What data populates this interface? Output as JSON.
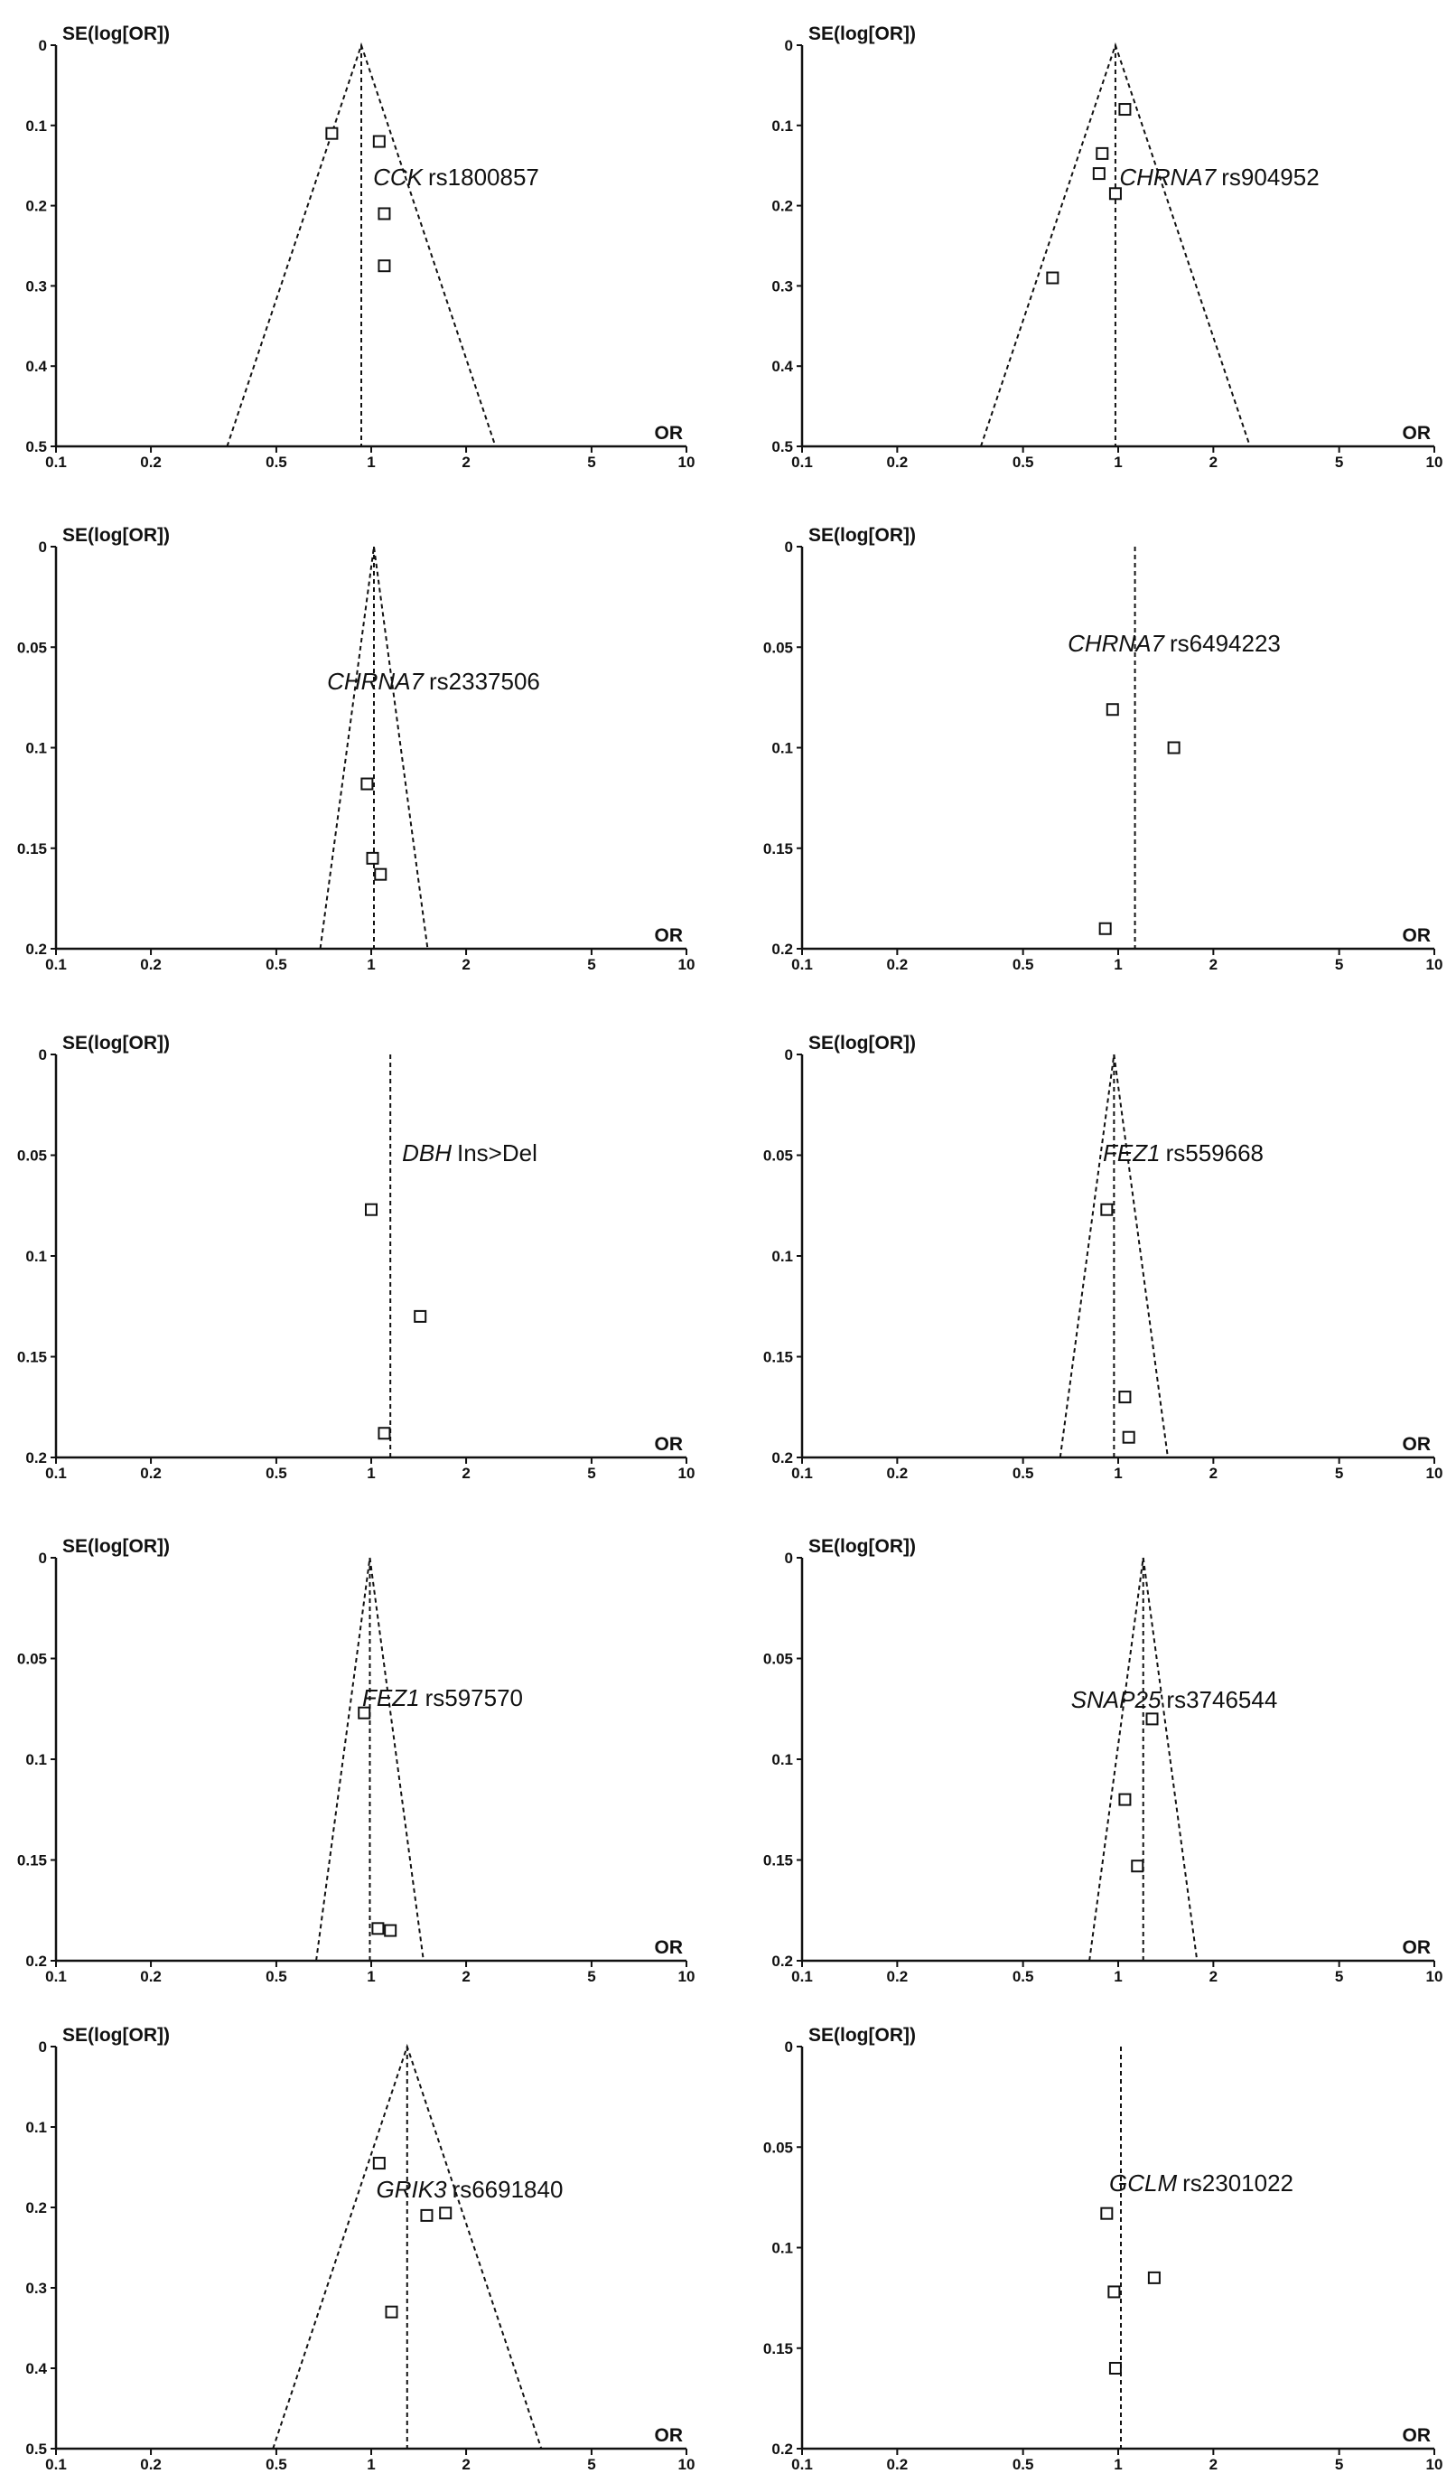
{
  "figure": {
    "panels_count": 10
  },
  "chart_data": [
    {
      "type": "scatter",
      "plot": "funnel",
      "gene": "CCK",
      "snp": "rs1800857",
      "ylabel": "SE(log[OR])",
      "xlabel": "OR",
      "xscale": "log",
      "xlim": [
        0.1,
        10
      ],
      "ylim": [
        0,
        0.5
      ],
      "y_inverted": true,
      "xticks": [
        "0.1",
        "0.2",
        "0.5",
        "1",
        "2",
        "5",
        "10"
      ],
      "yticks": [
        "0",
        "0.1",
        "0.2",
        "0.3",
        "0.4",
        "0.5"
      ],
      "pooled_or": 0.93,
      "funnel": true,
      "points": [
        {
          "or": 0.75,
          "se": 0.11
        },
        {
          "or": 1.06,
          "se": 0.12
        },
        {
          "or": 1.1,
          "se": 0.21
        },
        {
          "or": 1.1,
          "se": 0.275
        }
      ]
    },
    {
      "type": "scatter",
      "plot": "funnel",
      "gene": "CHRNA7",
      "snp": "rs904952",
      "ylabel": "SE(log[OR])",
      "xlabel": "OR",
      "xscale": "log",
      "xlim": [
        0.1,
        10
      ],
      "ylim": [
        0,
        0.5
      ],
      "y_inverted": true,
      "xticks": [
        "0.1",
        "0.2",
        "0.5",
        "1",
        "2",
        "5",
        "10"
      ],
      "yticks": [
        "0",
        "0.1",
        "0.2",
        "0.3",
        "0.4",
        "0.5"
      ],
      "pooled_or": 0.98,
      "funnel": true,
      "points": [
        {
          "or": 1.05,
          "se": 0.08
        },
        {
          "or": 0.89,
          "se": 0.135
        },
        {
          "or": 0.87,
          "se": 0.16
        },
        {
          "or": 0.98,
          "se": 0.185
        },
        {
          "or": 0.62,
          "se": 0.29
        }
      ]
    },
    {
      "type": "scatter",
      "plot": "funnel",
      "gene": "CHRNA7",
      "snp": "rs2337506",
      "ylabel": "SE(log[OR])",
      "xlabel": "OR",
      "xscale": "log",
      "xlim": [
        0.1,
        10
      ],
      "ylim": [
        0,
        0.2
      ],
      "y_inverted": true,
      "xticks": [
        "0.1",
        "0.2",
        "0.5",
        "1",
        "2",
        "5",
        "10"
      ],
      "yticks": [
        "0",
        "0.05",
        "0.1",
        "0.15",
        "0.2"
      ],
      "pooled_or": 1.02,
      "funnel": true,
      "points": [
        {
          "or": 0.97,
          "se": 0.118
        },
        {
          "or": 1.01,
          "se": 0.155
        },
        {
          "or": 1.07,
          "se": 0.163
        }
      ]
    },
    {
      "type": "scatter",
      "plot": "funnel",
      "gene": "CHRNA7",
      "snp": "rs6494223",
      "ylabel": "SE(log[OR])",
      "xlabel": "OR",
      "xscale": "log",
      "xlim": [
        0.1,
        10
      ],
      "ylim": [
        0,
        0.2
      ],
      "y_inverted": true,
      "xticks": [
        "0.1",
        "0.2",
        "0.5",
        "1",
        "2",
        "5",
        "10"
      ],
      "yticks": [
        "0",
        "0.05",
        "0.1",
        "0.15",
        "0.2"
      ],
      "pooled_or": 1.13,
      "funnel": false,
      "points": [
        {
          "or": 0.96,
          "se": 0.081
        },
        {
          "or": 1.5,
          "se": 0.1
        },
        {
          "or": 0.91,
          "se": 0.19
        }
      ]
    },
    {
      "type": "scatter",
      "plot": "funnel",
      "gene": "DBH",
      "snp": "Ins>Del",
      "ylabel": "SE(log[OR])",
      "xlabel": "OR",
      "xscale": "log",
      "xlim": [
        0.1,
        10
      ],
      "ylim": [
        0,
        0.2
      ],
      "y_inverted": true,
      "xticks": [
        "0.1",
        "0.2",
        "0.5",
        "1",
        "2",
        "5",
        "10"
      ],
      "yticks": [
        "0",
        "0.05",
        "0.1",
        "0.15",
        "0.2"
      ],
      "pooled_or": 1.15,
      "funnel": false,
      "points": [
        {
          "or": 1.0,
          "se": 0.077
        },
        {
          "or": 1.43,
          "se": 0.13
        },
        {
          "or": 1.1,
          "se": 0.188
        }
      ]
    },
    {
      "type": "scatter",
      "plot": "funnel",
      "gene": "FEZ1",
      "snp": "rs559668",
      "ylabel": "SE(log[OR])",
      "xlabel": "OR",
      "xscale": "log",
      "xlim": [
        0.1,
        10
      ],
      "ylim": [
        0,
        0.2
      ],
      "y_inverted": true,
      "xticks": [
        "0.1",
        "0.2",
        "0.5",
        "1",
        "2",
        "5",
        "10"
      ],
      "yticks": [
        "0",
        "0.05",
        "0.1",
        "0.15",
        "0.2"
      ],
      "pooled_or": 0.97,
      "funnel": true,
      "points": [
        {
          "or": 0.92,
          "se": 0.077
        },
        {
          "or": 1.05,
          "se": 0.17
        },
        {
          "or": 1.08,
          "se": 0.19
        }
      ]
    },
    {
      "type": "scatter",
      "plot": "funnel",
      "gene": "FEZ1",
      "snp": "rs597570",
      "ylabel": "SE(log[OR])",
      "xlabel": "OR",
      "xscale": "log",
      "xlim": [
        0.1,
        10
      ],
      "ylim": [
        0,
        0.2
      ],
      "y_inverted": true,
      "xticks": [
        "0.1",
        "0.2",
        "0.5",
        "1",
        "2",
        "5",
        "10"
      ],
      "yticks": [
        "0",
        "0.05",
        "0.1",
        "0.15",
        "0.2"
      ],
      "pooled_or": 0.99,
      "funnel": true,
      "points": [
        {
          "or": 0.95,
          "se": 0.077
        },
        {
          "or": 1.05,
          "se": 0.184
        },
        {
          "or": 1.15,
          "se": 0.185
        }
      ]
    },
    {
      "type": "scatter",
      "plot": "funnel",
      "gene": "SNAP25",
      "snp": "rs3746544",
      "ylabel": "SE(log[OR])",
      "xlabel": "OR",
      "xscale": "log",
      "xlim": [
        0.1,
        10
      ],
      "ylim": [
        0,
        0.2
      ],
      "y_inverted": true,
      "xticks": [
        "0.1",
        "0.2",
        "0.5",
        "1",
        "2",
        "5",
        "10"
      ],
      "yticks": [
        "0",
        "0.05",
        "0.1",
        "0.15",
        "0.2"
      ],
      "pooled_or": 1.2,
      "funnel": true,
      "points": [
        {
          "or": 1.28,
          "se": 0.08
        },
        {
          "or": 1.05,
          "se": 0.12
        },
        {
          "or": 1.15,
          "se": 0.153
        }
      ]
    },
    {
      "type": "scatter",
      "plot": "funnel",
      "gene": "GRIK3",
      "snp": "rs6691840",
      "ylabel": "SE(log[OR])",
      "xlabel": "OR",
      "xscale": "log",
      "xlim": [
        0.1,
        10
      ],
      "ylim": [
        0,
        0.5
      ],
      "y_inverted": true,
      "xticks": [
        "0.1",
        "0.2",
        "0.5",
        "1",
        "2",
        "5",
        "10"
      ],
      "yticks": [
        "0",
        "0.1",
        "0.2",
        "0.3",
        "0.4",
        "0.5"
      ],
      "pooled_or": 1.3,
      "funnel": true,
      "points": [
        {
          "or": 1.06,
          "se": 0.145
        },
        {
          "or": 1.5,
          "se": 0.21
        },
        {
          "or": 1.72,
          "se": 0.207
        },
        {
          "or": 1.16,
          "se": 0.33
        }
      ]
    },
    {
      "type": "scatter",
      "plot": "funnel",
      "gene": "GCLM",
      "snp": "rs2301022",
      "ylabel": "SE(log[OR])",
      "xlabel": "OR",
      "xscale": "log",
      "xlim": [
        0.1,
        10
      ],
      "ylim": [
        0,
        0.2
      ],
      "y_inverted": true,
      "xticks": [
        "0.1",
        "0.2",
        "0.5",
        "1",
        "2",
        "5",
        "10"
      ],
      "yticks": [
        "0",
        "0.05",
        "0.1",
        "0.15",
        "0.2"
      ],
      "pooled_or": 1.02,
      "funnel": false,
      "points": [
        {
          "or": 0.92,
          "se": 0.083
        },
        {
          "or": 1.3,
          "se": 0.115
        },
        {
          "or": 0.97,
          "se": 0.122
        },
        {
          "or": 0.98,
          "se": 0.16
        }
      ]
    }
  ]
}
